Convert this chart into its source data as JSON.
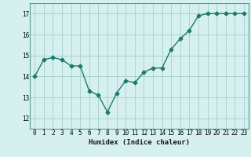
{
  "x": [
    0,
    1,
    2,
    3,
    4,
    5,
    6,
    7,
    8,
    9,
    10,
    11,
    12,
    13,
    14,
    15,
    16,
    17,
    18,
    19,
    20,
    21,
    22,
    23
  ],
  "y": [
    14.0,
    14.8,
    14.9,
    14.8,
    14.5,
    14.5,
    13.3,
    13.1,
    12.3,
    13.2,
    13.8,
    13.7,
    14.2,
    14.4,
    14.4,
    15.3,
    15.8,
    16.2,
    16.9,
    17.0,
    17.0,
    17.0,
    17.0,
    17.0
  ],
  "xlabel": "Humidex (Indice chaleur)",
  "ylim": [
    11.5,
    17.5
  ],
  "xlim": [
    -0.5,
    23.5
  ],
  "yticks": [
    12,
    13,
    14,
    15,
    16,
    17
  ],
  "xticks": [
    0,
    1,
    2,
    3,
    4,
    5,
    6,
    7,
    8,
    9,
    10,
    11,
    12,
    13,
    14,
    15,
    16,
    17,
    18,
    19,
    20,
    21,
    22,
    23
  ],
  "line_color": "#1a7a6e",
  "marker": "D",
  "marker_size": 2.5,
  "bg_color": "#d6f0ef",
  "grid_color": "#aad4d0",
  "xlabel_fontsize": 6.5,
  "tick_fontsize": 5.5,
  "linewidth": 1.0
}
